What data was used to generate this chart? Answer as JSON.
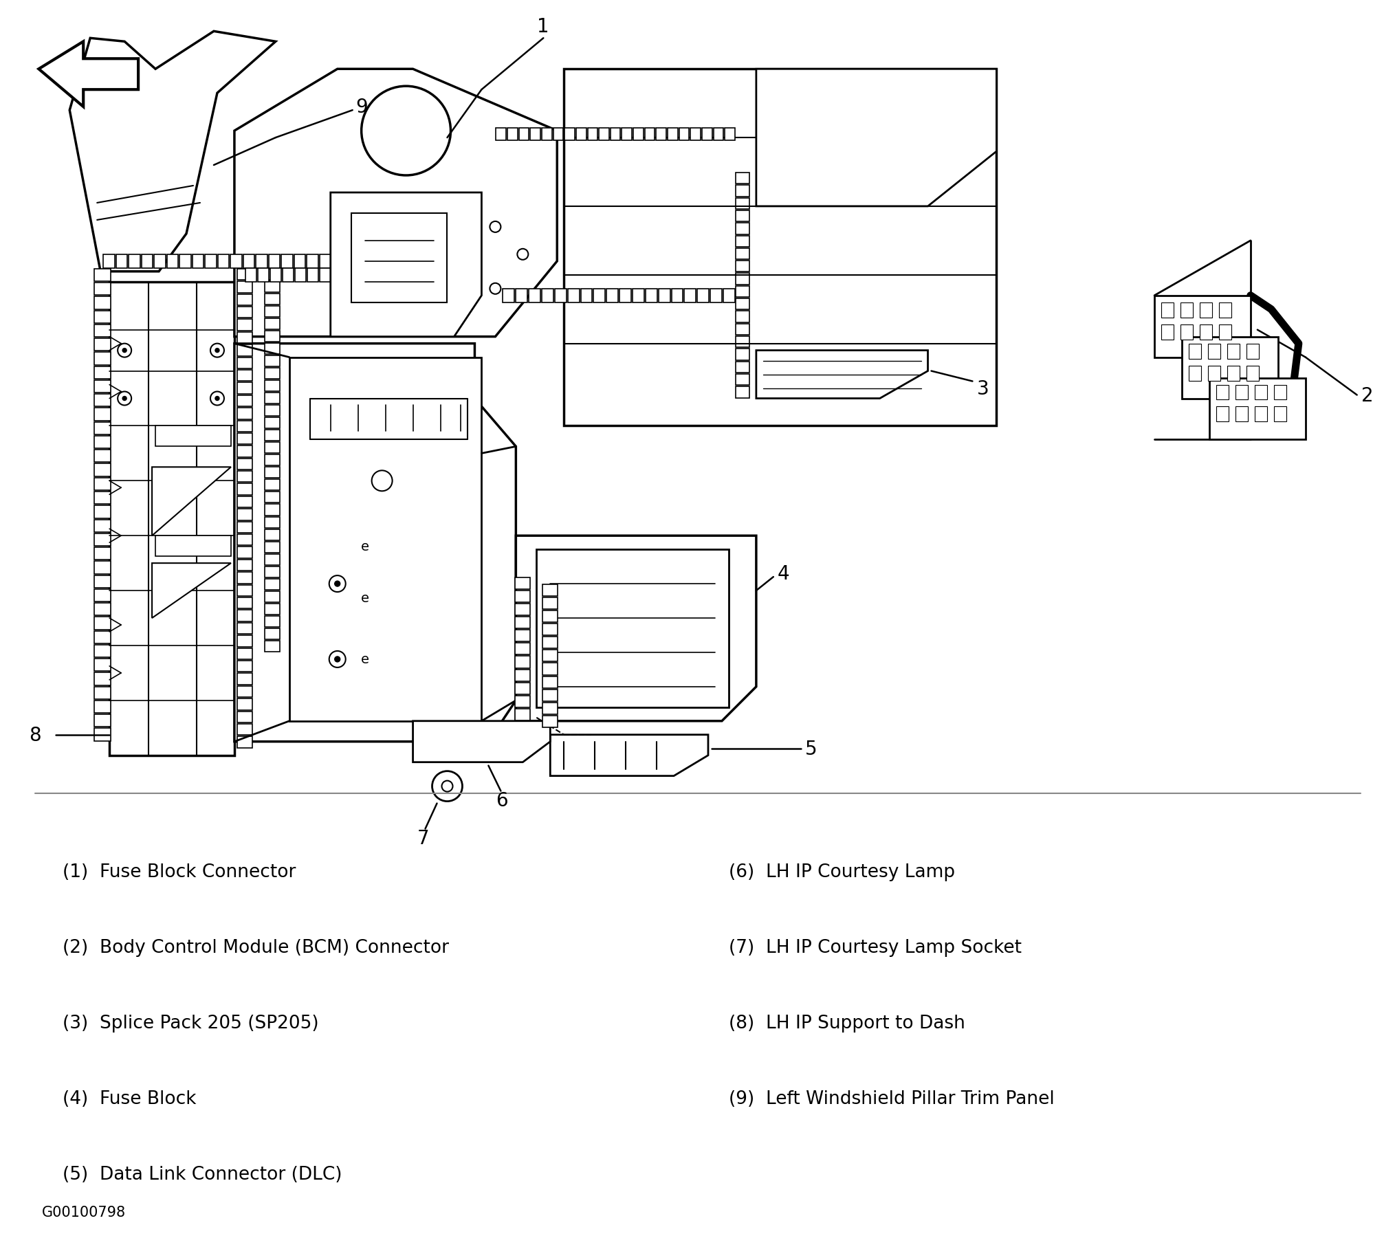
{
  "figure_width": 20.29,
  "figure_height": 18.15,
  "background_color": "#ffffff",
  "legend_items_left": [
    "(1)  Fuse Block Connector",
    "(2)  Body Control Module (BCM) Connector",
    "(3)  Splice Pack 205 (SP205)",
    "(4)  Fuse Block",
    "(5)  Data Link Connector (DLC)"
  ],
  "legend_items_right": [
    "(6)  LH IP Courtesy Lamp",
    "(7)  LH IP Courtesy Lamp Socket",
    "(8)  LH IP Support to Dash",
    "(9)  Left Windshield Pillar Trim Panel"
  ],
  "figure_id": "G00100798",
  "text_color": "#000000",
  "font_size_legend": 19,
  "font_size_label": 20,
  "font_size_figid": 15
}
